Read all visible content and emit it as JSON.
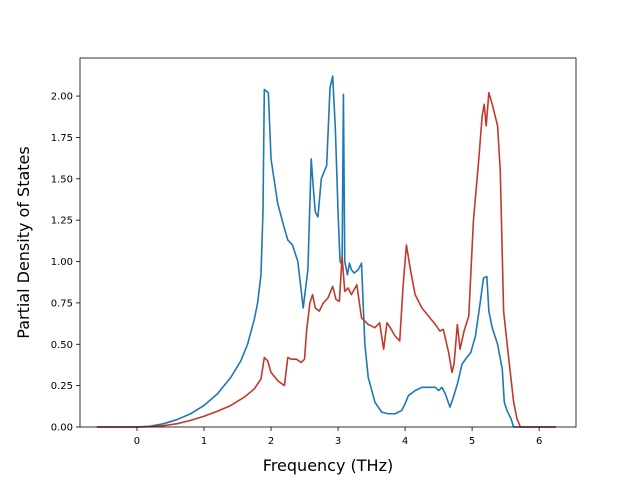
{
  "chart_data": {
    "type": "line",
    "title": "",
    "xlabel": "Frequency (THz)",
    "ylabel": "Partial Density of States",
    "xlim": [
      -0.85,
      6.55
    ],
    "ylim": [
      0.0,
      2.23
    ],
    "xticks": [
      0,
      1,
      2,
      3,
      4,
      5,
      6
    ],
    "xtick_labels": [
      "0",
      "1",
      "2",
      "3",
      "4",
      "5",
      "6"
    ],
    "yticks": [
      0.0,
      0.25,
      0.5,
      0.75,
      1.0,
      1.25,
      1.5,
      1.75,
      2.0
    ],
    "ytick_labels": [
      "0.00",
      "0.25",
      "0.50",
      "0.75",
      "1.00",
      "1.25",
      "1.50",
      "1.75",
      "2.00"
    ],
    "grid": false,
    "legend": "none",
    "series": [
      {
        "color": "#1f77b4",
        "points": [
          [
            -0.6,
            0.0
          ],
          [
            0.0,
            0.0
          ],
          [
            0.2,
            0.005
          ],
          [
            0.4,
            0.02
          ],
          [
            0.6,
            0.045
          ],
          [
            0.8,
            0.08
          ],
          [
            1.0,
            0.13
          ],
          [
            1.2,
            0.2
          ],
          [
            1.4,
            0.3
          ],
          [
            1.55,
            0.4
          ],
          [
            1.65,
            0.5
          ],
          [
            1.75,
            0.65
          ],
          [
            1.8,
            0.75
          ],
          [
            1.85,
            0.92
          ],
          [
            1.88,
            1.3
          ],
          [
            1.9,
            2.04
          ],
          [
            1.96,
            2.02
          ],
          [
            2.0,
            1.62
          ],
          [
            2.1,
            1.35
          ],
          [
            2.2,
            1.2
          ],
          [
            2.25,
            1.13
          ],
          [
            2.32,
            1.1
          ],
          [
            2.4,
            1.0
          ],
          [
            2.48,
            0.72
          ],
          [
            2.55,
            0.95
          ],
          [
            2.6,
            1.62
          ],
          [
            2.63,
            1.45
          ],
          [
            2.66,
            1.3
          ],
          [
            2.7,
            1.27
          ],
          [
            2.75,
            1.5
          ],
          [
            2.83,
            1.58
          ],
          [
            2.88,
            2.05
          ],
          [
            2.92,
            2.12
          ],
          [
            2.96,
            1.8
          ],
          [
            3.0,
            1.3
          ],
          [
            3.03,
            1.0
          ],
          [
            3.06,
            0.98
          ],
          [
            3.08,
            2.01
          ],
          [
            3.1,
            1.0
          ],
          [
            3.14,
            0.92
          ],
          [
            3.17,
            0.99
          ],
          [
            3.2,
            0.95
          ],
          [
            3.24,
            0.93
          ],
          [
            3.3,
            0.95
          ],
          [
            3.35,
            0.99
          ],
          [
            3.4,
            0.5
          ],
          [
            3.45,
            0.3
          ],
          [
            3.55,
            0.15
          ],
          [
            3.65,
            0.09
          ],
          [
            3.75,
            0.08
          ],
          [
            3.85,
            0.08
          ],
          [
            3.95,
            0.1
          ],
          [
            4.0,
            0.14
          ],
          [
            4.05,
            0.19
          ],
          [
            4.15,
            0.22
          ],
          [
            4.25,
            0.24
          ],
          [
            4.35,
            0.24
          ],
          [
            4.45,
            0.24
          ],
          [
            4.5,
            0.22
          ],
          [
            4.55,
            0.24
          ],
          [
            4.6,
            0.2
          ],
          [
            4.67,
            0.12
          ],
          [
            4.72,
            0.18
          ],
          [
            4.78,
            0.26
          ],
          [
            4.85,
            0.38
          ],
          [
            4.92,
            0.42
          ],
          [
            4.98,
            0.45
          ],
          [
            5.05,
            0.55
          ],
          [
            5.12,
            0.75
          ],
          [
            5.17,
            0.9
          ],
          [
            5.22,
            0.91
          ],
          [
            5.25,
            0.7
          ],
          [
            5.3,
            0.6
          ],
          [
            5.38,
            0.5
          ],
          [
            5.45,
            0.35
          ],
          [
            5.48,
            0.15
          ],
          [
            5.52,
            0.1
          ],
          [
            5.58,
            0.05
          ],
          [
            5.62,
            0.0
          ],
          [
            6.25,
            0.0
          ]
        ]
      },
      {
        "color": "#c0392b",
        "points": [
          [
            -0.6,
            0.0
          ],
          [
            0.0,
            0.0
          ],
          [
            0.2,
            0.002
          ],
          [
            0.4,
            0.008
          ],
          [
            0.6,
            0.02
          ],
          [
            0.8,
            0.04
          ],
          [
            1.0,
            0.065
          ],
          [
            1.2,
            0.095
          ],
          [
            1.4,
            0.13
          ],
          [
            1.6,
            0.18
          ],
          [
            1.75,
            0.23
          ],
          [
            1.85,
            0.29
          ],
          [
            1.9,
            0.42
          ],
          [
            1.95,
            0.4
          ],
          [
            2.0,
            0.33
          ],
          [
            2.1,
            0.28
          ],
          [
            2.2,
            0.25
          ],
          [
            2.25,
            0.42
          ],
          [
            2.3,
            0.41
          ],
          [
            2.38,
            0.41
          ],
          [
            2.45,
            0.39
          ],
          [
            2.5,
            0.41
          ],
          [
            2.53,
            0.58
          ],
          [
            2.58,
            0.75
          ],
          [
            2.62,
            0.8
          ],
          [
            2.66,
            0.72
          ],
          [
            2.72,
            0.7
          ],
          [
            2.78,
            0.75
          ],
          [
            2.85,
            0.78
          ],
          [
            2.92,
            0.85
          ],
          [
            2.97,
            0.77
          ],
          [
            3.02,
            0.76
          ],
          [
            3.06,
            1.03
          ],
          [
            3.1,
            0.82
          ],
          [
            3.15,
            0.84
          ],
          [
            3.2,
            0.8
          ],
          [
            3.28,
            0.86
          ],
          [
            3.35,
            0.66
          ],
          [
            3.45,
            0.62
          ],
          [
            3.55,
            0.6
          ],
          [
            3.62,
            0.63
          ],
          [
            3.68,
            0.47
          ],
          [
            3.73,
            0.63
          ],
          [
            3.78,
            0.6
          ],
          [
            3.85,
            0.55
          ],
          [
            3.92,
            0.52
          ],
          [
            3.97,
            0.85
          ],
          [
            4.02,
            1.1
          ],
          [
            4.08,
            0.95
          ],
          [
            4.15,
            0.8
          ],
          [
            4.25,
            0.72
          ],
          [
            4.35,
            0.67
          ],
          [
            4.45,
            0.62
          ],
          [
            4.52,
            0.58
          ],
          [
            4.57,
            0.59
          ],
          [
            4.65,
            0.45
          ],
          [
            4.7,
            0.33
          ],
          [
            4.73,
            0.38
          ],
          [
            4.78,
            0.62
          ],
          [
            4.82,
            0.47
          ],
          [
            4.88,
            0.58
          ],
          [
            4.95,
            0.67
          ],
          [
            5.02,
            1.25
          ],
          [
            5.1,
            1.62
          ],
          [
            5.15,
            1.88
          ],
          [
            5.18,
            1.95
          ],
          [
            5.21,
            1.82
          ],
          [
            5.25,
            2.02
          ],
          [
            5.3,
            1.95
          ],
          [
            5.38,
            1.82
          ],
          [
            5.42,
            1.55
          ],
          [
            5.47,
            0.7
          ],
          [
            5.55,
            0.4
          ],
          [
            5.62,
            0.15
          ],
          [
            5.67,
            0.05
          ],
          [
            5.72,
            0.0
          ],
          [
            6.25,
            0.0
          ]
        ]
      }
    ]
  }
}
